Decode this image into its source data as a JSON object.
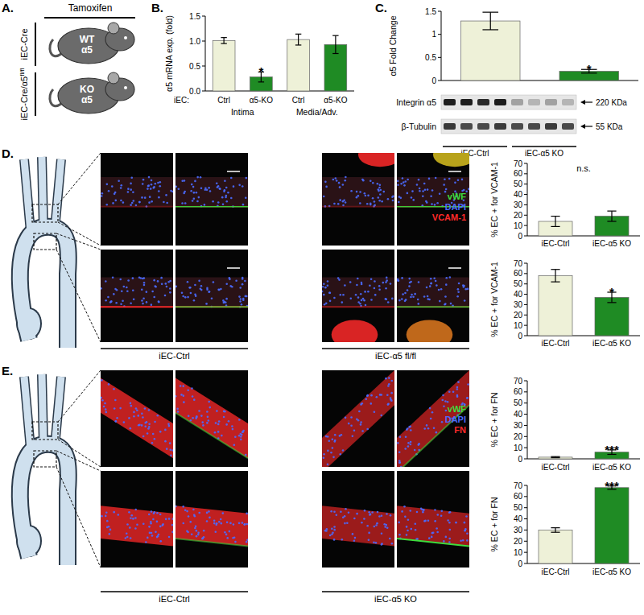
{
  "panel_labels": [
    "A.",
    "B.",
    "C.",
    "D.",
    "E."
  ],
  "panel_a": {
    "treatment": "Tamoxifen",
    "groups": [
      {
        "genotype": "iEC-Cre",
        "mouse_text": [
          "WT",
          "α5"
        ]
      },
      {
        "genotype": "iEC-Cre/α5",
        "genotype_sup": "fl/fl",
        "mouse_text": [
          "KO",
          "α5"
        ]
      }
    ]
  },
  "blot": {
    "rows": [
      {
        "label": "Integrin α5",
        "size": "220 KDa"
      },
      {
        "label": "β-Tubulin",
        "size": "55 KDa"
      }
    ]
  },
  "panel_d": {
    "images": {
      "channels": [
        {
          "name": "vWF",
          "color": "#3ddc3d"
        },
        {
          "name": "DAPI",
          "color": "#4a6bff"
        },
        {
          "name": "VCAM-1",
          "color": "#ff2a2a"
        }
      ],
      "labels": [
        "iEC-Ctrl",
        "iEC-α5 fl/fl"
      ]
    }
  },
  "panel_e": {
    "images": {
      "channels": [
        {
          "name": "vWF",
          "color": "#3ddc3d"
        },
        {
          "name": "DAPI",
          "color": "#4a6bff"
        },
        {
          "name": "FN",
          "color": "#ff2a2a"
        }
      ],
      "labels": [
        "iEC-Ctrl",
        "iEC-α5 KO"
      ]
    }
  },
  "chart_data": [
    {
      "type": "bar",
      "ylabel": "α5 mRNA exp. (fold)",
      "category_axis_label": "iEC:",
      "categories": [
        "Ctrl",
        "α5-KO",
        "Ctrl",
        "α5-KO"
      ],
      "groups": [
        "Intima",
        "Media/Adv."
      ],
      "values": [
        1.01,
        0.28,
        1.03,
        0.93
      ],
      "errors": [
        0.06,
        0.1,
        0.11,
        0.18
      ],
      "colors": [
        "#eef1d8",
        "#1f8b24",
        "#eef1d8",
        "#1f8b24"
      ],
      "ylim": [
        0,
        1.5
      ],
      "yticks": [
        {
          "value": 0,
          "label": "0.0"
        },
        0.5,
        {
          "value": 1,
          "label": "1.0"
        },
        1.5
      ],
      "annotations": [
        {
          "text": "*",
          "x": 1
        }
      ]
    },
    {
      "type": "bar",
      "ylabel": "α5 Fold Change",
      "categories": [
        "iEC-Ctrl",
        "iEC-α5 KO"
      ],
      "values": [
        1.29,
        0.2
      ],
      "errors": [
        0.19,
        0.04
      ],
      "colors": [
        "#eef1d8",
        "#1f8b24"
      ],
      "ylim": [
        0,
        1.5
      ],
      "yticks": [
        0,
        0.5,
        1,
        1.5
      ],
      "annotations": [
        {
          "text": "*",
          "x": 1
        }
      ]
    },
    {
      "type": "bar",
      "ylabel": "% EC + for VCAM-1",
      "categories": [
        "iEC-Ctrl",
        "iEC-α5 KO"
      ],
      "values": [
        14,
        19
      ],
      "errors": [
        5,
        5
      ],
      "colors": [
        "#eef1d8",
        "#1f8b24"
      ],
      "ylim": [
        0,
        70
      ],
      "yticks": [
        0,
        10,
        20,
        30,
        40,
        50,
        60,
        70
      ],
      "annotations": [
        {
          "text": "n.s.",
          "x": 0.5
        }
      ]
    },
    {
      "type": "bar",
      "ylabel": "% EC + for VCAM-1",
      "categories": [
        "iEC-Ctrl",
        "iEC-α5 KO"
      ],
      "values": [
        58,
        37
      ],
      "errors": [
        6,
        5
      ],
      "colors": [
        "#eef1d8",
        "#1f8b24"
      ],
      "ylim": [
        0,
        70
      ],
      "yticks": [
        0,
        10,
        20,
        30,
        40,
        50,
        60,
        70
      ],
      "annotations": [
        {
          "text": "*",
          "x": 1
        }
      ]
    },
    {
      "type": "bar",
      "ylabel": "% EC + for FN",
      "categories": [
        "iEC-Ctrl",
        "iEC-α5 KO"
      ],
      "values": [
        1.5,
        6
      ],
      "errors": [
        0.5,
        2
      ],
      "colors": [
        "#eef1d8",
        "#1f8b24"
      ],
      "ylim": [
        0,
        70
      ],
      "yticks": [
        0,
        10,
        20,
        30,
        40,
        50,
        60,
        70
      ],
      "annotations": [
        {
          "text": "***",
          "x": 1
        }
      ]
    },
    {
      "type": "bar",
      "ylabel": "% EC + for FN",
      "categories": [
        "iEC-Ctrl",
        "iEC-α5 KO"
      ],
      "values": [
        30,
        68
      ],
      "errors": [
        2,
        1.5
      ],
      "colors": [
        "#eef1d8",
        "#1f8b24"
      ],
      "ylim": [
        0,
        70
      ],
      "yticks": [
        0,
        10,
        20,
        30,
        40,
        50,
        60,
        70
      ],
      "annotations": [
        {
          "text": "***",
          "x": 1
        }
      ]
    }
  ]
}
